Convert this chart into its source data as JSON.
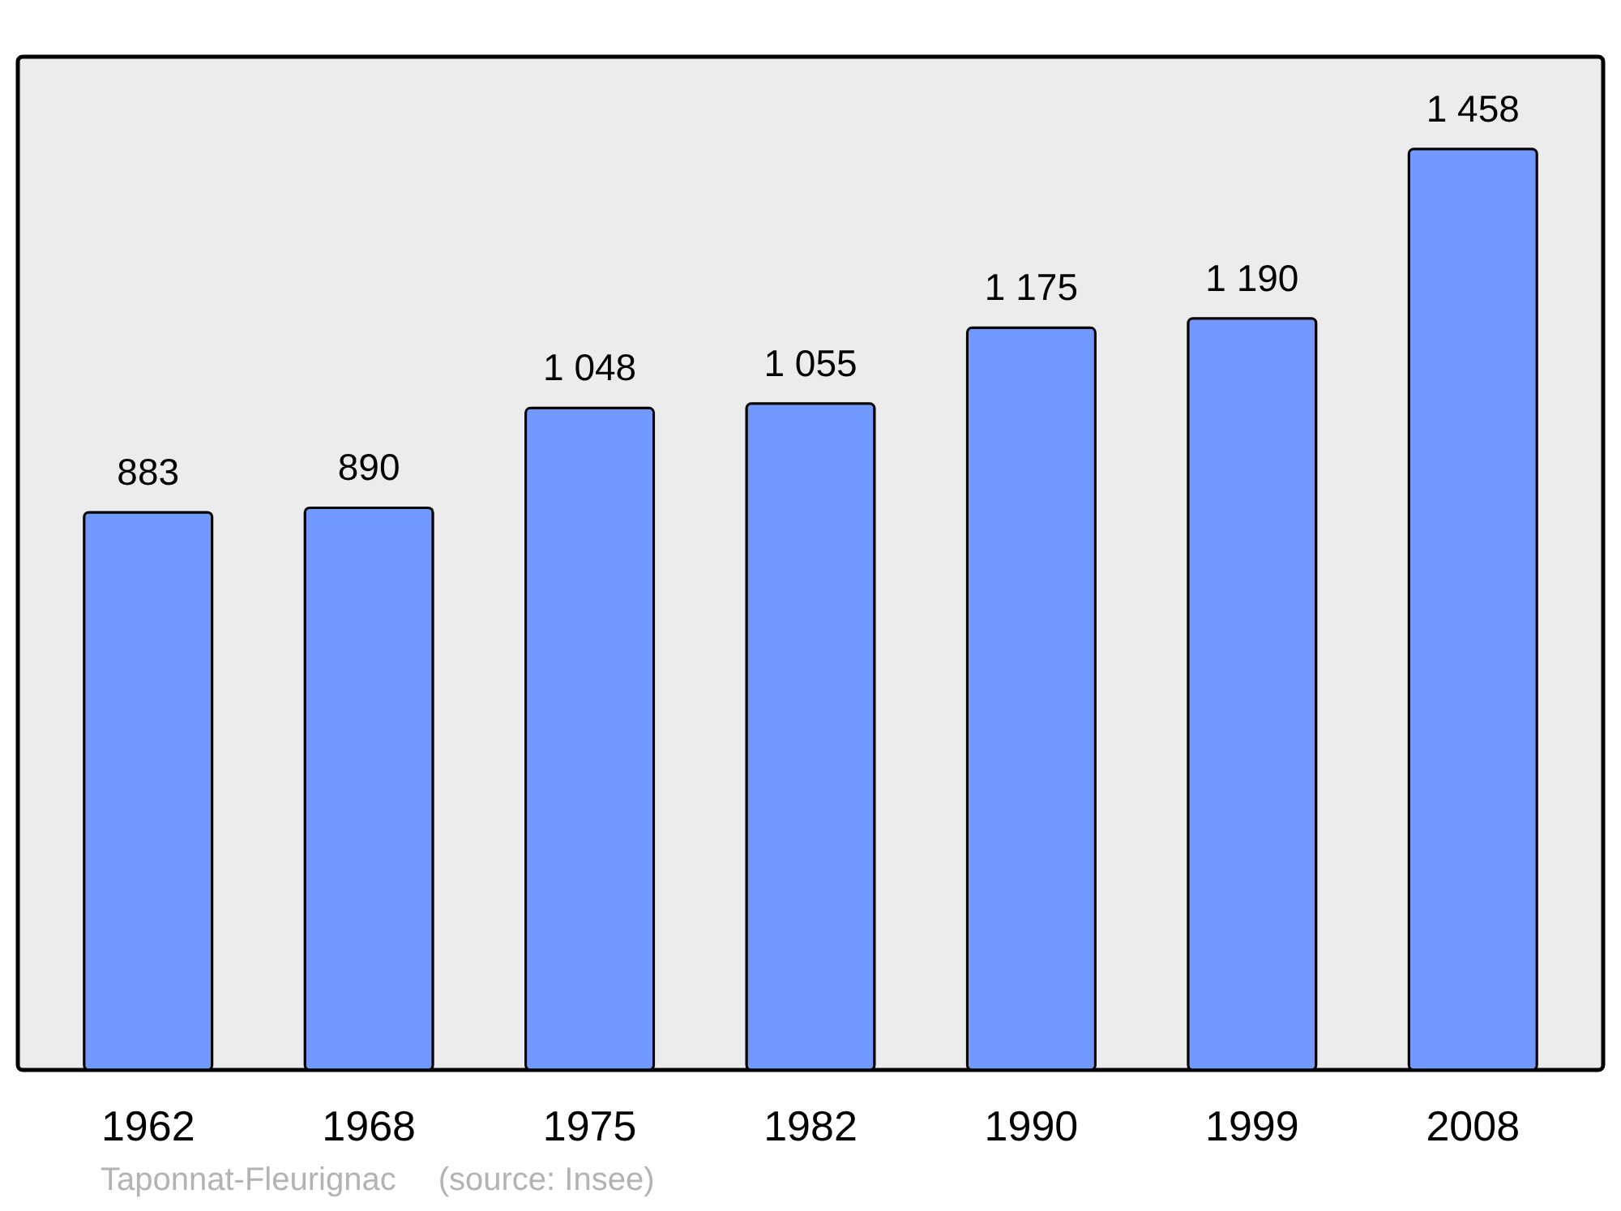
{
  "chart_data": {
    "type": "bar",
    "categories": [
      "1962",
      "1968",
      "1975",
      "1982",
      "1990",
      "1999",
      "2008"
    ],
    "values": [
      883,
      890,
      1048,
      1055,
      1175,
      1190,
      1458
    ],
    "value_labels": [
      "883",
      "890",
      "1 048",
      "1 055",
      "1 175",
      "1 190",
      "1 458"
    ],
    "color": "#7399ff",
    "ylim": [
      0,
      1604
    ],
    "annotations": [
      "Taponnat-Fleurignac",
      "(source: Insee)"
    ]
  }
}
